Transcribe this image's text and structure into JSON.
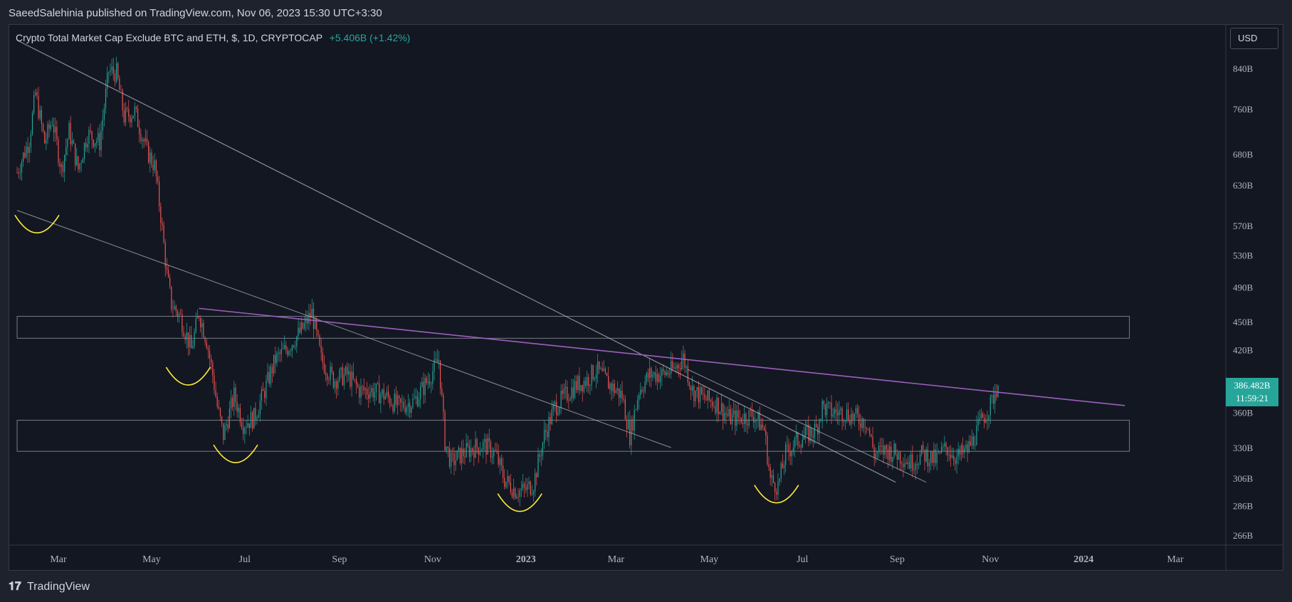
{
  "header": {
    "publisher_line": "SaeedSalehinia published on TradingView.com, Nov 06, 2023 15:30 UTC+3:30"
  },
  "legend": {
    "symbol": "Crypto Total Market Cap Exclude BTC and ETH, $, 1D, CRYPTOCAP",
    "change": "+5.406B (+1.42%)"
  },
  "toolbar": {
    "currency": "USD"
  },
  "last_price": {
    "value": "386.482B",
    "countdown": "11:59:21"
  },
  "footer": {
    "brand": "TradingView"
  },
  "colors": {
    "up": "#26a69a",
    "down": "#ef5350",
    "trendline": "#b2b5be",
    "resistance": "#9c5fbf",
    "marker": "#ffeb3b",
    "zone": "#787b86"
  },
  "chart_data": {
    "type": "candlestick",
    "title": "Crypto Total Market Cap Exclude BTC and ETH, $, 1D, CRYPTOCAP",
    "xlabel": "",
    "ylabel": "",
    "y_scale": "log",
    "grid": false,
    "x_range": [
      "2022-02-02",
      "2024-04-01"
    ],
    "ylim": [
      255,
      900
    ],
    "x_ticks": [
      {
        "date": "2022-03-01",
        "label": "Mar"
      },
      {
        "date": "2022-05-01",
        "label": "May"
      },
      {
        "date": "2022-07-01",
        "label": "Jul"
      },
      {
        "date": "2022-09-01",
        "label": "Sep"
      },
      {
        "date": "2022-11-01",
        "label": "Nov"
      },
      {
        "date": "2023-01-01",
        "label": "2023",
        "bold": true
      },
      {
        "date": "2023-03-01",
        "label": "Mar"
      },
      {
        "date": "2023-05-01",
        "label": "May"
      },
      {
        "date": "2023-07-01",
        "label": "Jul"
      },
      {
        "date": "2023-09-01",
        "label": "Sep"
      },
      {
        "date": "2023-11-01",
        "label": "Nov"
      },
      {
        "date": "2024-01-01",
        "label": "2024",
        "bold": true
      },
      {
        "date": "2024-03-01",
        "label": "Mar"
      }
    ],
    "y_ticks": [
      {
        "value": 840,
        "label": "840B"
      },
      {
        "value": 760,
        "label": "760B"
      },
      {
        "value": 680,
        "label": "680B"
      },
      {
        "value": 630,
        "label": "630B"
      },
      {
        "value": 570,
        "label": "570B"
      },
      {
        "value": 530,
        "label": "530B"
      },
      {
        "value": 490,
        "label": "490B"
      },
      {
        "value": 450,
        "label": "450B"
      },
      {
        "value": 420,
        "label": "420B"
      },
      {
        "value": 360,
        "label": "360B"
      },
      {
        "value": 330,
        "label": "330B"
      },
      {
        "value": 306,
        "label": "306B"
      },
      {
        "value": 286,
        "label": "286B"
      },
      {
        "value": 266,
        "label": "266B"
      }
    ],
    "price_path": [
      [
        "2022-02-02",
        650
      ],
      [
        "2022-02-10",
        705
      ],
      [
        "2022-02-14",
        790
      ],
      [
        "2022-02-20",
        700
      ],
      [
        "2022-02-25",
        740
      ],
      [
        "2022-03-03",
        655
      ],
      [
        "2022-03-08",
        720
      ],
      [
        "2022-03-14",
        655
      ],
      [
        "2022-03-20",
        715
      ],
      [
        "2022-03-28",
        700
      ],
      [
        "2022-04-03",
        835
      ],
      [
        "2022-04-08",
        830
      ],
      [
        "2022-04-13",
        745
      ],
      [
        "2022-04-20",
        755
      ],
      [
        "2022-04-28",
        685
      ],
      [
        "2022-05-03",
        660
      ],
      [
        "2022-05-07",
        585
      ],
      [
        "2022-05-11",
        505
      ],
      [
        "2022-05-14",
        470
      ],
      [
        "2022-05-20",
        455
      ],
      [
        "2022-05-27",
        420
      ],
      [
        "2022-06-01",
        460
      ],
      [
        "2022-06-06",
        430
      ],
      [
        "2022-06-10",
        395
      ],
      [
        "2022-06-13",
        365
      ],
      [
        "2022-06-17",
        340
      ],
      [
        "2022-06-24",
        375
      ],
      [
        "2022-06-30",
        350
      ],
      [
        "2022-07-07",
        355
      ],
      [
        "2022-07-14",
        380
      ],
      [
        "2022-07-21",
        410
      ],
      [
        "2022-07-28",
        420
      ],
      [
        "2022-08-07",
        440
      ],
      [
        "2022-08-14",
        460
      ],
      [
        "2022-08-20",
        410
      ],
      [
        "2022-08-28",
        390
      ],
      [
        "2022-09-06",
        395
      ],
      [
        "2022-09-14",
        380
      ],
      [
        "2022-09-22",
        380
      ],
      [
        "2022-10-01",
        375
      ],
      [
        "2022-10-10",
        365
      ],
      [
        "2022-10-20",
        370
      ],
      [
        "2022-10-29",
        390
      ],
      [
        "2022-11-05",
        410
      ],
      [
        "2022-11-09",
        335
      ],
      [
        "2022-11-13",
        318
      ],
      [
        "2022-11-20",
        325
      ],
      [
        "2022-11-28",
        330
      ],
      [
        "2022-12-05",
        332
      ],
      [
        "2022-12-12",
        325
      ],
      [
        "2022-12-18",
        305
      ],
      [
        "2022-12-25",
        297
      ],
      [
        "2022-12-31",
        297
      ],
      [
        "2023-01-06",
        302
      ],
      [
        "2023-01-13",
        340
      ],
      [
        "2023-01-20",
        365
      ],
      [
        "2023-01-27",
        375
      ],
      [
        "2023-02-03",
        385
      ],
      [
        "2023-02-10",
        390
      ],
      [
        "2023-02-16",
        400
      ],
      [
        "2023-02-25",
        385
      ],
      [
        "2023-03-05",
        375
      ],
      [
        "2023-03-10",
        340
      ],
      [
        "2023-03-16",
        380
      ],
      [
        "2023-03-23",
        395
      ],
      [
        "2023-03-31",
        395
      ],
      [
        "2023-04-08",
        400
      ],
      [
        "2023-04-14",
        412
      ],
      [
        "2023-04-20",
        380
      ],
      [
        "2023-04-28",
        372
      ],
      [
        "2023-05-06",
        368
      ],
      [
        "2023-05-14",
        355
      ],
      [
        "2023-05-22",
        355
      ],
      [
        "2023-05-30",
        358
      ],
      [
        "2023-06-06",
        345
      ],
      [
        "2023-06-10",
        305
      ],
      [
        "2023-06-15",
        300
      ],
      [
        "2023-06-20",
        325
      ],
      [
        "2023-06-27",
        335
      ],
      [
        "2023-07-03",
        340
      ],
      [
        "2023-07-10",
        345
      ],
      [
        "2023-07-14",
        365
      ],
      [
        "2023-07-20",
        360
      ],
      [
        "2023-07-28",
        360
      ],
      [
        "2023-08-05",
        355
      ],
      [
        "2023-08-12",
        352
      ],
      [
        "2023-08-17",
        325
      ],
      [
        "2023-08-25",
        328
      ],
      [
        "2023-09-01",
        325
      ],
      [
        "2023-09-10",
        318
      ],
      [
        "2023-09-18",
        325
      ],
      [
        "2023-09-26",
        320
      ],
      [
        "2023-10-03",
        330
      ],
      [
        "2023-10-10",
        322
      ],
      [
        "2023-10-17",
        328
      ],
      [
        "2023-10-22",
        340
      ],
      [
        "2023-10-27",
        355
      ],
      [
        "2023-11-01",
        366
      ],
      [
        "2023-11-06",
        386.482
      ]
    ],
    "drawings": {
      "trendlines": [
        {
          "from": [
            "2022-02-02",
            900
          ],
          "to": [
            "2023-08-31",
            303
          ]
        },
        {
          "from": [
            "2022-02-02",
            592
          ],
          "to": [
            "2023-04-06",
            330
          ]
        },
        {
          "from": [
            "2023-04-17",
            400
          ],
          "to": [
            "2023-09-20",
            303
          ]
        }
      ],
      "resistance_line": {
        "from": [
          "2022-06-01",
          465
        ],
        "to": [
          "2024-01-28",
          366
        ]
      },
      "zones": [
        {
          "from": "2022-02-02",
          "to": "2024-01-31",
          "y_high": 456,
          "y_low": 432
        },
        {
          "from": "2022-02-02",
          "to": "2024-01-31",
          "y_high": 353,
          "y_low": 327
        }
      ],
      "markers": [
        {
          "date": "2022-02-15",
          "value": 560
        },
        {
          "date": "2022-05-25",
          "value": 385
        },
        {
          "date": "2022-06-25",
          "value": 318
        },
        {
          "date": "2022-12-28",
          "value": 282
        },
        {
          "date": "2023-06-14",
          "value": 288
        }
      ]
    }
  }
}
